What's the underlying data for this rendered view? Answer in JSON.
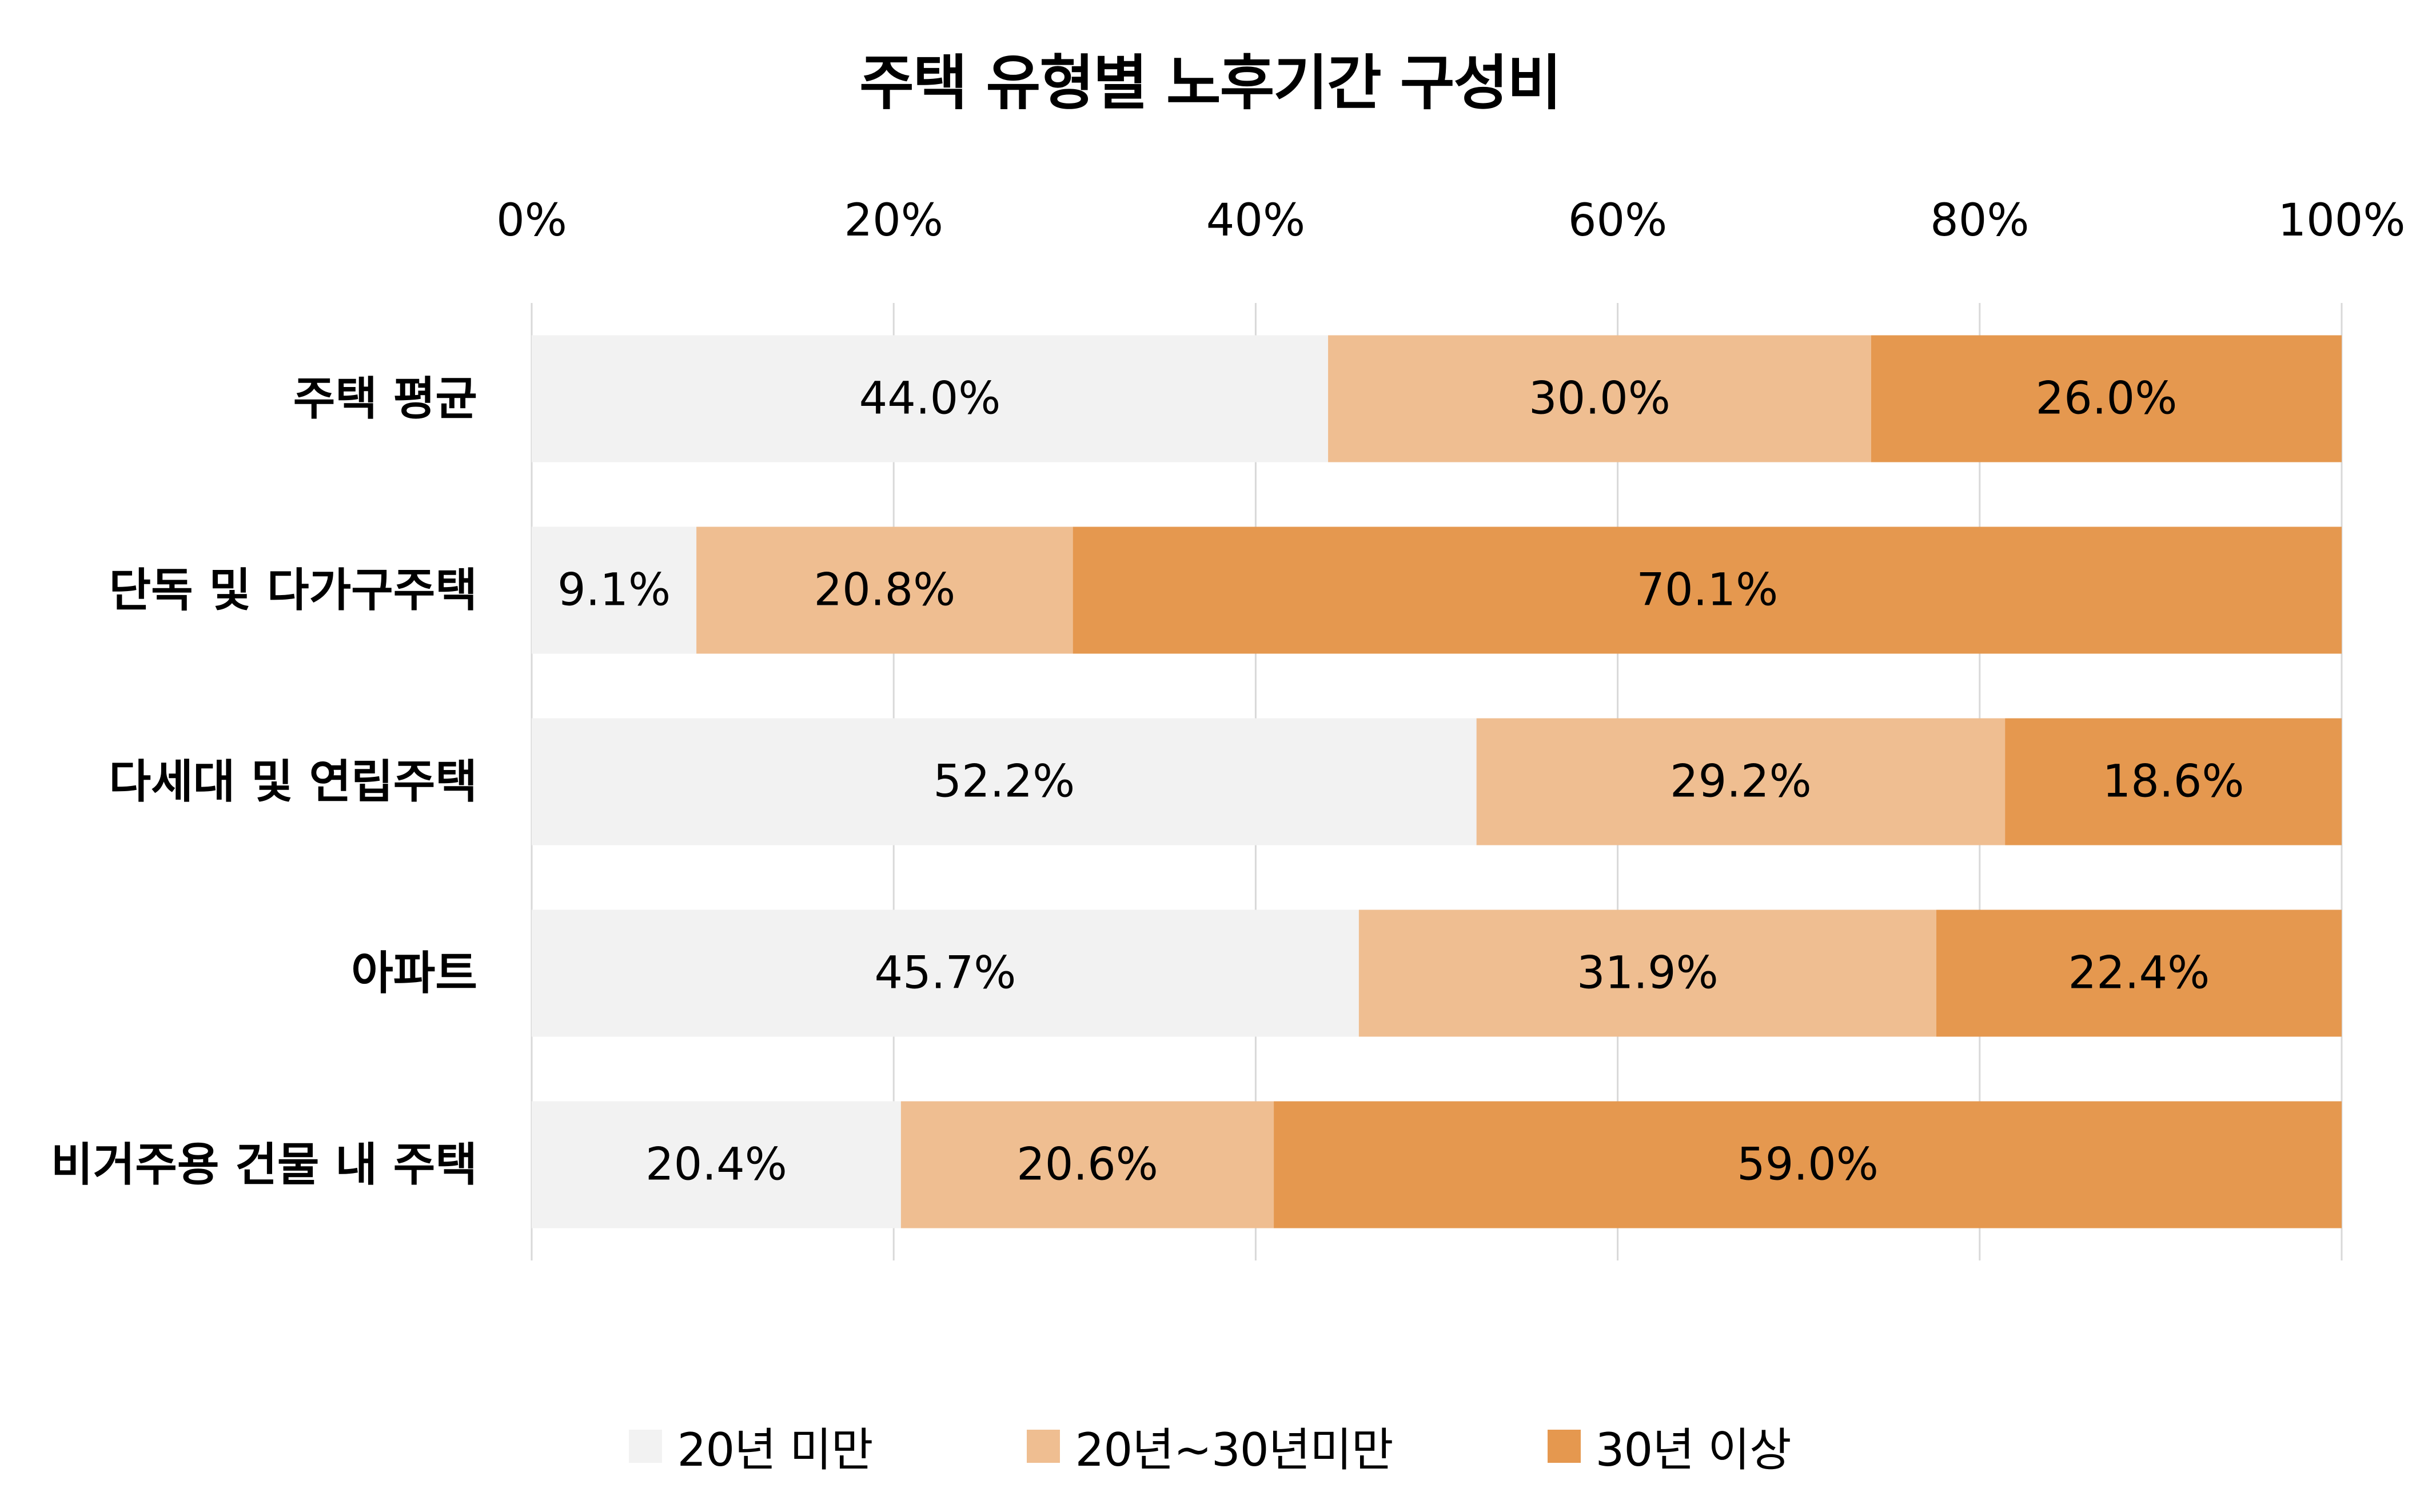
{
  "chart_data": {
    "type": "bar",
    "orientation": "horizontal",
    "stacked": true,
    "title": "주택 유형별 노후기간 구성비",
    "categories": [
      "주택 평균",
      "단독 및 다가구주택",
      "다세대 및 연립주택",
      "아파트",
      "비거주용 건물 내 주택"
    ],
    "series": [
      {
        "name": "20년 미만",
        "color": "#f2f2f2",
        "values": [
          44.0,
          9.1,
          52.2,
          45.7,
          20.4
        ],
        "labels": [
          "44.0%",
          "9.1%",
          "52.2%",
          "45.7%",
          "20.4%"
        ]
      },
      {
        "name": "20년~30년미만",
        "color": "#efbe91",
        "values": [
          30.0,
          20.8,
          29.2,
          31.9,
          20.6
        ],
        "labels": [
          "30.0%",
          "20.8%",
          "29.2%",
          "31.9%",
          "20.6%"
        ]
      },
      {
        "name": "30년 이상",
        "color": "#e5984f",
        "values": [
          26.0,
          70.1,
          18.6,
          22.4,
          59.0
        ],
        "labels": [
          "26.0%",
          "70.1%",
          "18.6%",
          "22.4%",
          "59.0%"
        ]
      }
    ],
    "xlim": [
      0,
      100
    ],
    "ticks": [
      0,
      20,
      40,
      60,
      80,
      100
    ],
    "tick_labels": [
      "0%",
      "20%",
      "40%",
      "60%",
      "80%",
      "100%"
    ],
    "xlabel": "",
    "ylabel": "",
    "grid": true,
    "gridline_color": "#d9d9d9",
    "xaxis_position": "top",
    "legend_position": "bottom-center"
  }
}
